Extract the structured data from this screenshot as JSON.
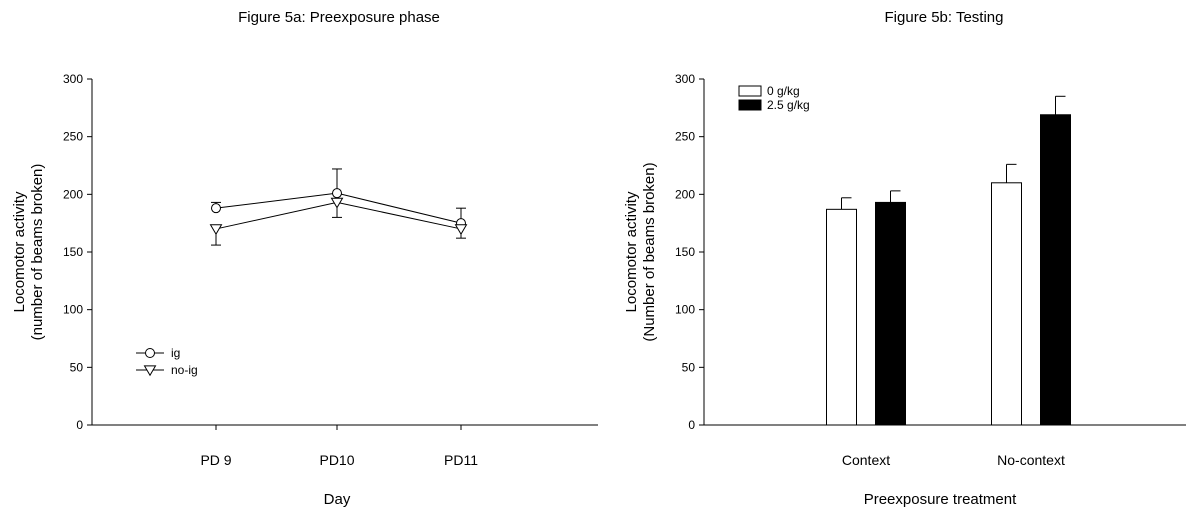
{
  "chart_data": [
    {
      "type": "line",
      "title": "Figure 5a: Preexposure phase",
      "xlabel": "Day",
      "ylabel": [
        "Locomotor activity",
        "(number of beams broken)"
      ],
      "categories": [
        "PD 9",
        "PD10",
        "PD11"
      ],
      "ylim": [
        0,
        300
      ],
      "yticks": [
        0,
        50,
        100,
        150,
        200,
        250,
        300
      ],
      "grid": false,
      "legend": "bottom-left",
      "series": [
        {
          "name": "ig",
          "marker": "circle",
          "values": [
            188,
            201,
            175
          ],
          "errors": [
            5,
            21,
            13
          ]
        },
        {
          "name": "no-ig",
          "marker": "triangle-down",
          "values": [
            170,
            193,
            170
          ],
          "errors": [
            14,
            13,
            8
          ]
        }
      ]
    },
    {
      "type": "bar",
      "title": "Figure 5b: Testing",
      "xlabel": "Preexposure treatment",
      "ylabel": [
        "Locomotor activity",
        "(Number of beams broken)"
      ],
      "categories": [
        "Context",
        "No-context"
      ],
      "ylim": [
        0,
        300
      ],
      "yticks": [
        0,
        50,
        100,
        150,
        200,
        250,
        300
      ],
      "grid": false,
      "legend": "top-left",
      "series": [
        {
          "name": "0 g/kg",
          "color": "#ffffff",
          "values": [
            187,
            210
          ],
          "errors": [
            10,
            16
          ]
        },
        {
          "name": "2.5 g/kg",
          "color": "#000000",
          "values": [
            193,
            269
          ],
          "errors": [
            10,
            16
          ]
        }
      ]
    }
  ]
}
